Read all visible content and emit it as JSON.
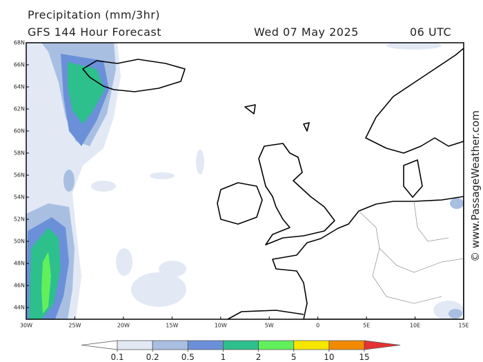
{
  "map": {
    "title": "Precipitation (mm/3hr)",
    "subtitle": "GFS 144 Hour Forecast",
    "date": "Wed 07 May 2025",
    "time": "06 UTC",
    "credit": "© www.PassageWeather.com",
    "lat_labels": [
      "68N",
      "66N",
      "64N",
      "62N",
      "60N",
      "58N",
      "56N",
      "54N",
      "52N",
      "50N",
      "48N",
      "46N",
      "44N"
    ],
    "lon_labels": [
      "30W",
      "25W",
      "20W",
      "15W",
      "10W",
      "5W",
      "0",
      "5E",
      "10E",
      "15E"
    ],
    "colorbar": {
      "levels": [
        0.1,
        0.2,
        0.5,
        1,
        2,
        5,
        10,
        15
      ],
      "colors": [
        "#ffffff",
        "#e2e9f5",
        "#a9bfe2",
        "#6b90d9",
        "#2dbf8c",
        "#62ef5c",
        "#f7e600",
        "#f28a00",
        "#e63232"
      ]
    }
  }
}
